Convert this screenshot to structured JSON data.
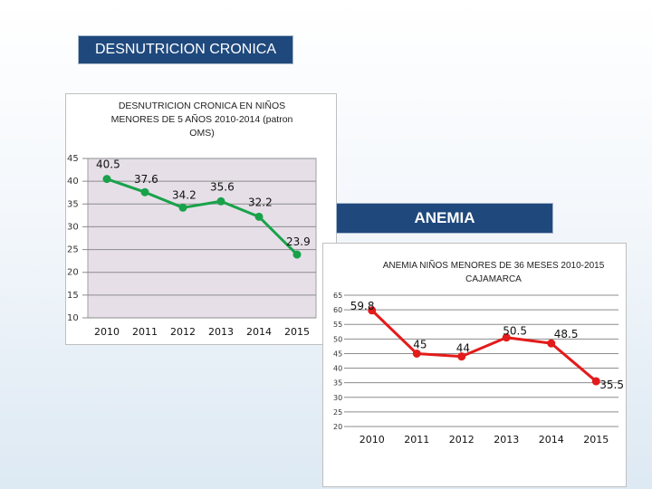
{
  "slide": {
    "desnutricion_heading": "DESNUTRICION CRONICA",
    "anemia_heading": "ANEMIA"
  },
  "colors": {
    "heading_bg": "#1f497d",
    "green_series": "#19a24a",
    "red_series": "#e31b1b",
    "plot_fill": "#e6dfe8"
  },
  "chart_data": [
    {
      "type": "line",
      "title": "DESNUTRICION CRONICA EN NIÑOS MENORES DE 5 AÑOS 2010-2014  (patron OMS)",
      "categories": [
        "2010",
        "2011",
        "2012",
        "2013",
        "2014",
        "2015"
      ],
      "series": [
        {
          "name": "Desnutrición crónica",
          "values": [
            40.5,
            37.6,
            34.2,
            35.6,
            32.2,
            23.9
          ]
        }
      ],
      "value_labels": [
        "40.5",
        "37.6",
        "34.2",
        "35.6",
        "32.2",
        "23.9"
      ],
      "y_ticks": [
        "10",
        "15",
        "20",
        "25",
        "30",
        "35",
        "40",
        "45"
      ],
      "ylim": [
        10,
        45
      ],
      "xlabel": "",
      "ylabel": "",
      "grid": true
    },
    {
      "type": "line",
      "title": "ANEMIA NIÑOS MENORES DE 36 MESES 2010-2015 CAJAMARCA",
      "categories": [
        "2010",
        "2011",
        "2012",
        "2013",
        "2014",
        "2015"
      ],
      "series": [
        {
          "name": "Anemia",
          "values": [
            59.8,
            45,
            44,
            50.5,
            48.5,
            35.5
          ]
        }
      ],
      "value_labels": [
        "59.8",
        "45",
        "44",
        "50.5",
        "48.5",
        "35.5"
      ],
      "y_ticks": [
        "20",
        "25",
        "30",
        "35",
        "40",
        "45",
        "50",
        "55",
        "60",
        "65"
      ],
      "ylim": [
        20,
        65
      ],
      "xlabel": "",
      "ylabel": "",
      "grid": true
    }
  ]
}
